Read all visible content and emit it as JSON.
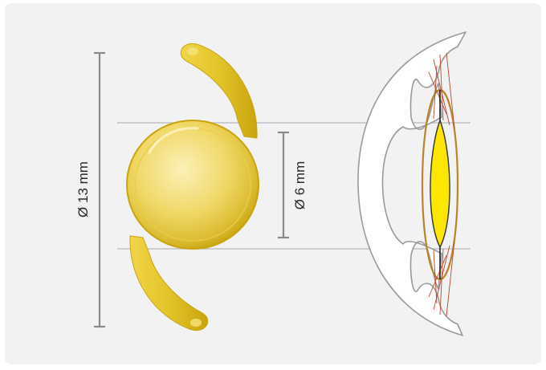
{
  "labels": {
    "overall_diameter": "Ø 13 mm",
    "optic_diameter": "Ø 6 mm"
  },
  "colors": {
    "panel_background": "#f2f2f3",
    "lens_gold": "#e3c42a",
    "lens_gold_dark": "#c9a40f",
    "dimension_gray": "#8a8a8a",
    "eye_outline": "#9a9a9a",
    "implanted_lens_yellow": "#ffe600",
    "capsule_brown": "#b8842a",
    "zonule_red": "#b8472f"
  }
}
